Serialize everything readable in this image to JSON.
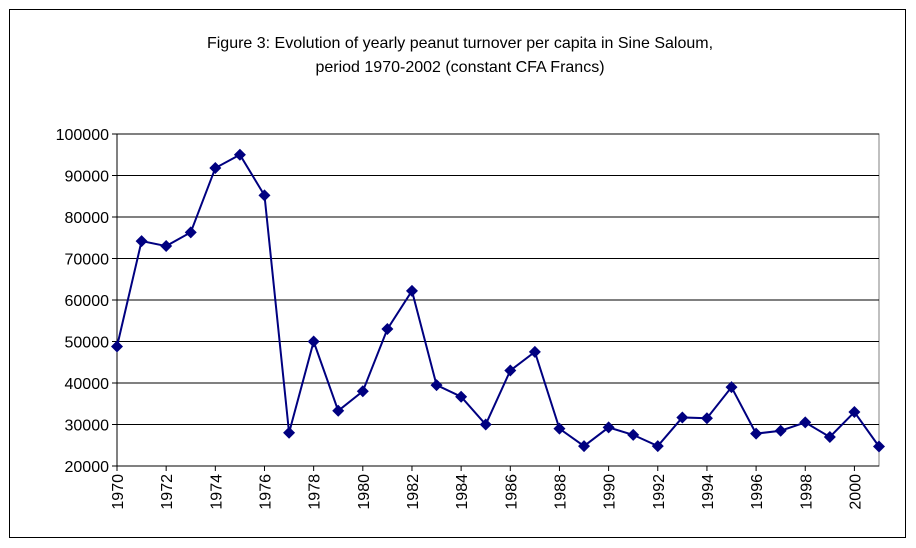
{
  "chart_data": {
    "type": "line",
    "title": [
      "Figure 3: Evolution of yearly peanut turnover per capita in Sine Saloum,",
      "period 1970-2002 (constant CFA Francs)"
    ],
    "x": [
      1970,
      1971,
      1972,
      1973,
      1974,
      1975,
      1976,
      1977,
      1978,
      1979,
      1980,
      1981,
      1982,
      1983,
      1984,
      1985,
      1986,
      1987,
      1988,
      1989,
      1990,
      1991,
      1992,
      1993,
      1994,
      1995,
      1996,
      1997,
      1998,
      1999,
      2000,
      2001
    ],
    "series": [
      {
        "color": "#000080",
        "values": [
          48800,
          74200,
          73000,
          76300,
          91800,
          95000,
          85200,
          28000,
          50000,
          33300,
          38000,
          53000,
          62200,
          39500,
          36700,
          30000,
          43000,
          47500,
          29000,
          24800,
          29300,
          27500,
          24800,
          31700,
          31500,
          39000,
          27800,
          28500,
          30500,
          27000,
          33000,
          24700
        ]
      }
    ],
    "xlim": [
      1970,
      2001
    ],
    "xticks": [
      1970,
      1972,
      1974,
      1976,
      1978,
      1980,
      1982,
      1984,
      1986,
      1988,
      1990,
      1992,
      1994,
      1996,
      1998,
      2000
    ],
    "ylim": [
      20000,
      100000
    ],
    "yticks": [
      20000,
      30000,
      40000,
      50000,
      60000,
      70000,
      80000,
      90000,
      100000
    ],
    "grid": true
  }
}
